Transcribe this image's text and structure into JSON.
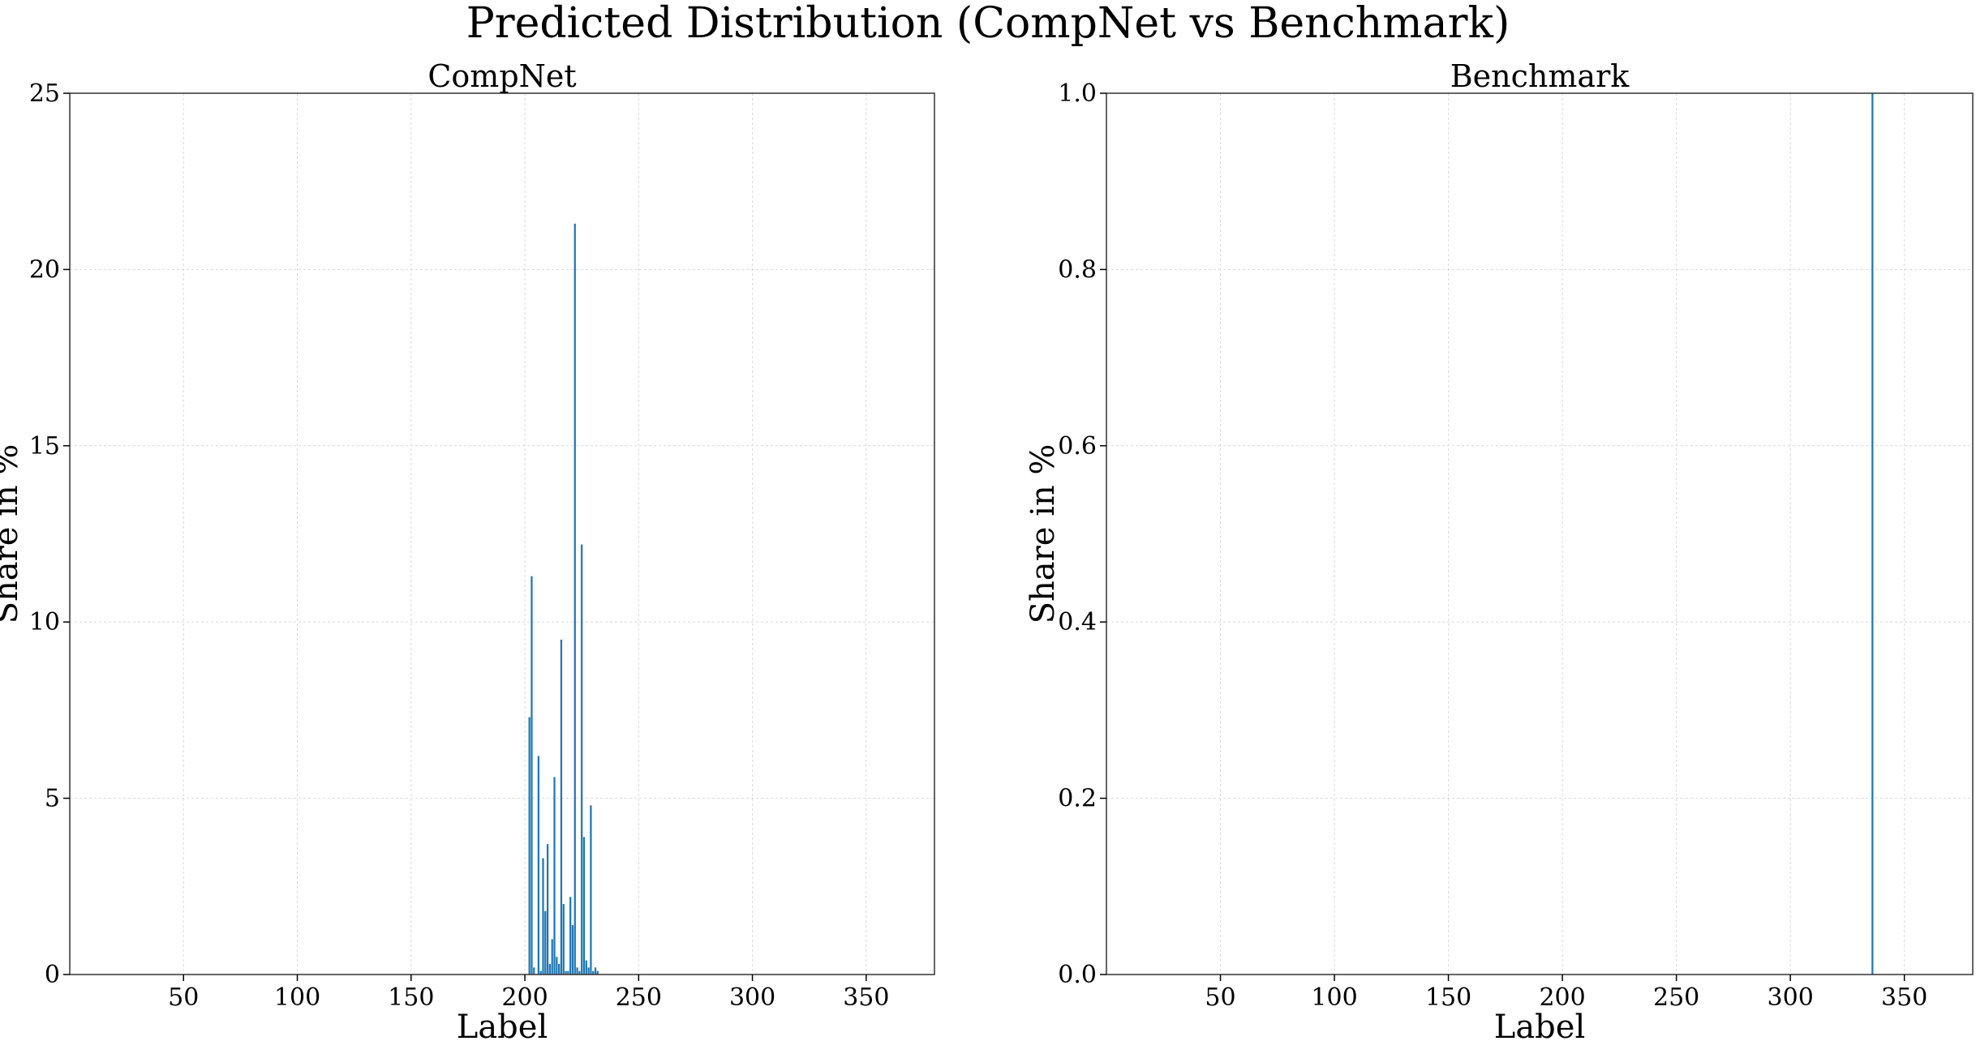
{
  "figure": {
    "suptitle": "Predicted Distribution (CompNet vs Benchmark)"
  },
  "colors": {
    "bar": "#1f77b4",
    "grid": "#d9d9d9",
    "axes": "#333333"
  },
  "chart_data": [
    {
      "type": "bar",
      "title": "CompNet",
      "xlabel": "Label",
      "ylabel": "Share in %",
      "xlim": [
        0,
        380
      ],
      "ylim": [
        0,
        25
      ],
      "xticks": [
        50,
        100,
        150,
        200,
        250,
        300,
        350
      ],
      "yticks": [
        0,
        5,
        10,
        15,
        20,
        25
      ],
      "grid": true,
      "x": [
        202,
        203,
        204,
        206,
        207,
        208,
        209,
        210,
        211,
        212,
        213,
        214,
        215,
        216,
        217,
        218,
        219,
        220,
        221,
        222,
        223,
        224,
        225,
        226,
        227,
        228,
        229,
        230,
        231,
        232
      ],
      "values": [
        7.3,
        11.3,
        0.2,
        6.2,
        0.1,
        3.3,
        1.8,
        3.7,
        0.3,
        1.0,
        5.6,
        0.5,
        0.3,
        9.5,
        2.0,
        0.1,
        0.1,
        2.2,
        1.4,
        21.3,
        0.2,
        0.1,
        12.2,
        3.9,
        0.4,
        0.2,
        4.8,
        0.1,
        0.2,
        0.1
      ]
    },
    {
      "type": "bar",
      "title": "Benchmark",
      "xlabel": "Label",
      "ylabel": "Share in %",
      "xlim": [
        0,
        380
      ],
      "ylim": [
        0.0,
        1.0
      ],
      "xticks": [
        50,
        100,
        150,
        200,
        250,
        300,
        350
      ],
      "yticks": [
        "0.0",
        "0.2",
        "0.4",
        "0.6",
        "0.8",
        "1.0"
      ],
      "grid": true,
      "x": [
        336
      ],
      "values": [
        1.0
      ]
    }
  ]
}
